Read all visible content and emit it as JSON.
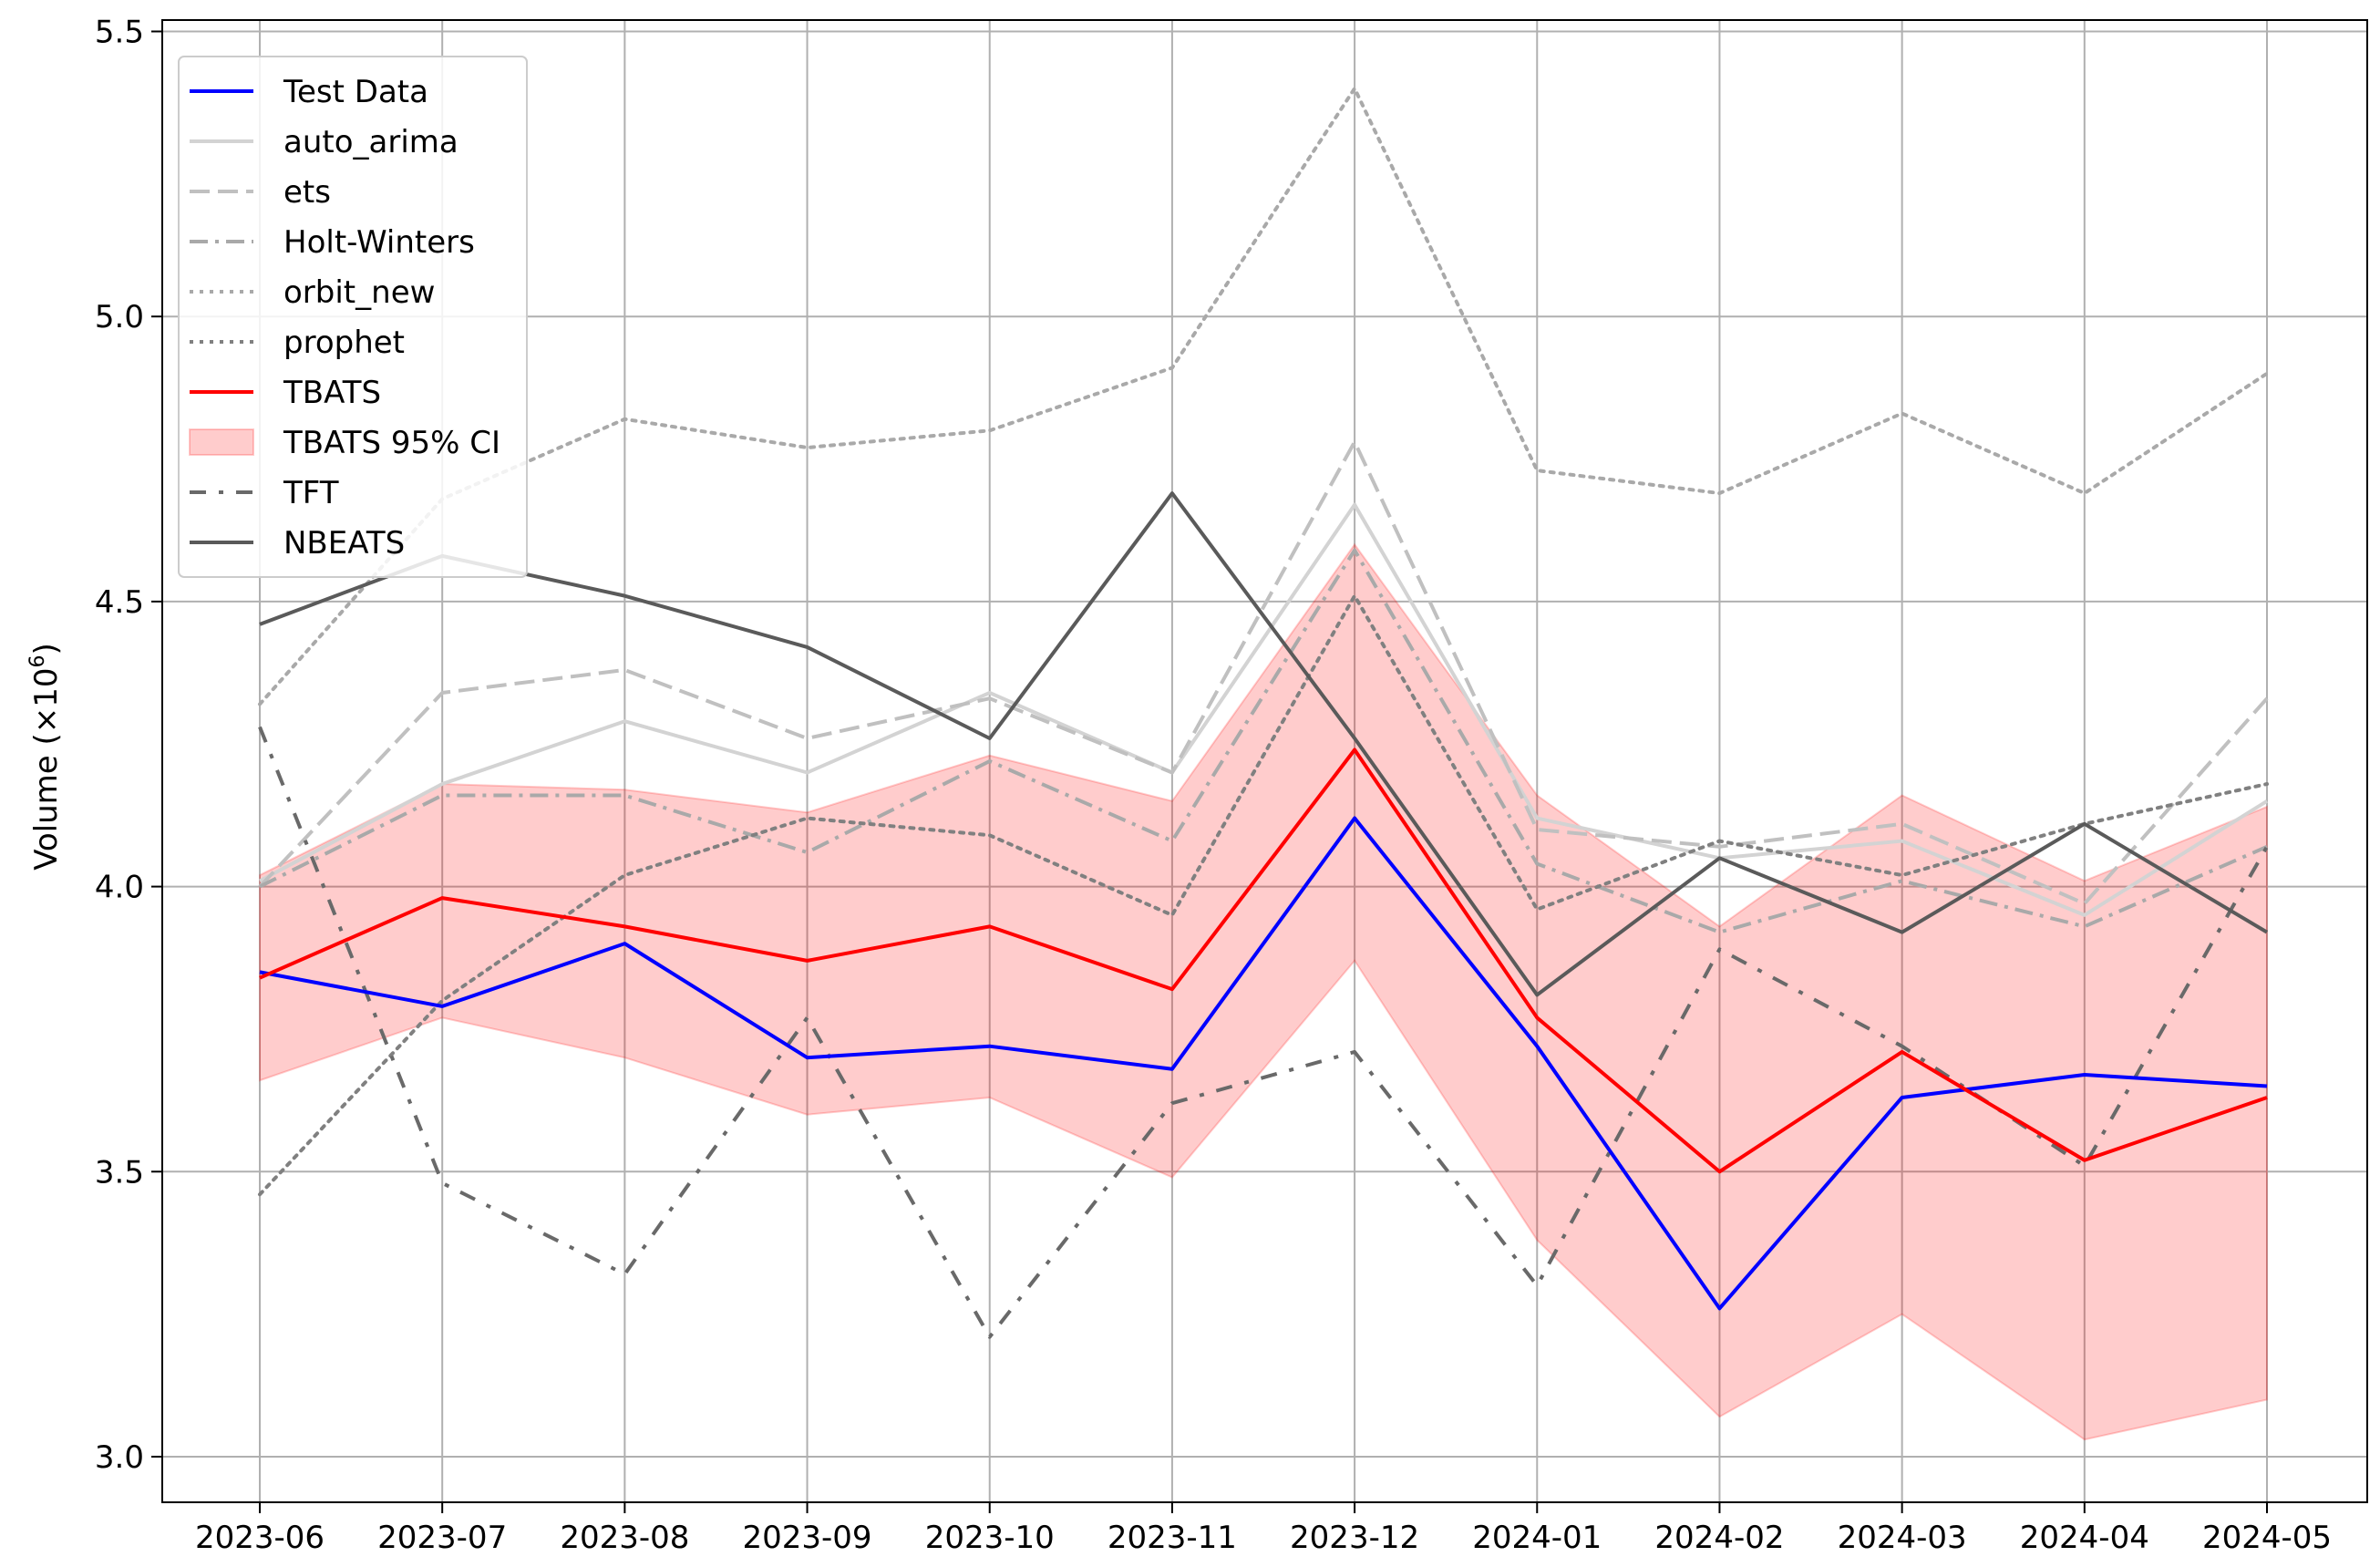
{
  "chart_data": {
    "type": "line",
    "title": "",
    "xlabel": "",
    "ylabel": "Volume (×10⁶)",
    "ylabel_parts": {
      "prefix": "Volume (×10",
      "exponent": "6",
      "suffix": ")"
    },
    "ylim": [
      2.92,
      5.52
    ],
    "yticks": [
      3.0,
      3.5,
      4.0,
      4.5,
      5.0,
      5.5
    ],
    "ytick_labels": [
      "3.0",
      "3.5",
      "4.0",
      "4.5",
      "5.0",
      "5.5"
    ],
    "grid": true,
    "legend_position": "top-left",
    "categories": [
      "2023-06",
      "2023-07",
      "2023-08",
      "2023-09",
      "2023-10",
      "2023-11",
      "2023-12",
      "2024-01",
      "2024-02",
      "2024-03",
      "2024-04",
      "2024-05"
    ],
    "series": [
      {
        "name": "Test Data",
        "color": "#0000ff",
        "dash": "solid",
        "values": [
          3.85,
          3.79,
          3.9,
          3.7,
          3.72,
          3.68,
          4.12,
          3.72,
          3.26,
          3.63,
          3.67,
          3.65
        ]
      },
      {
        "name": "auto_arima",
        "color": "#d3d3d3",
        "dash": "solid",
        "values": [
          4.01,
          4.18,
          4.29,
          4.2,
          4.34,
          4.2,
          4.67,
          4.12,
          4.05,
          4.08,
          3.95,
          4.15
        ]
      },
      {
        "name": "ets",
        "color": "#c0c0c0",
        "dash": "dashed",
        "values": [
          4.0,
          4.34,
          4.38,
          4.26,
          4.33,
          4.2,
          4.78,
          4.1,
          4.07,
          4.11,
          3.97,
          4.33
        ]
      },
      {
        "name": "Holt-Winters",
        "color": "#a9a9a9",
        "dash": "dashdot",
        "values": [
          4.0,
          4.16,
          4.16,
          4.06,
          4.22,
          4.08,
          4.59,
          4.04,
          3.92,
          4.01,
          3.93,
          4.07
        ]
      },
      {
        "name": "orbit_new",
        "color": "#a9a9a9",
        "dash": "dotted",
        "values": [
          4.32,
          4.68,
          4.82,
          4.77,
          4.8,
          4.91,
          5.4,
          4.73,
          4.69,
          4.83,
          4.69,
          4.9
        ]
      },
      {
        "name": "prophet",
        "color": "#808080",
        "dash": "dotted",
        "values": [
          3.46,
          3.8,
          4.02,
          4.12,
          4.09,
          3.95,
          4.51,
          3.96,
          4.08,
          4.02,
          4.11,
          4.18
        ]
      },
      {
        "name": "TBATS",
        "color": "#ff0000",
        "dash": "solid",
        "values": [
          3.84,
          3.98,
          3.93,
          3.87,
          3.93,
          3.82,
          4.24,
          3.77,
          3.5,
          3.71,
          3.52,
          3.63
        ]
      },
      {
        "name": "TFT",
        "color": "#696969",
        "dash": "dashdot-long",
        "values": [
          4.28,
          3.48,
          3.32,
          3.77,
          3.21,
          3.62,
          3.71,
          3.3,
          3.89,
          3.72,
          3.51,
          4.07
        ]
      },
      {
        "name": "NBEATS",
        "color": "#5a5a5a",
        "dash": "solid",
        "values": [
          4.46,
          4.58,
          4.51,
          4.42,
          4.26,
          4.69,
          4.26,
          3.81,
          4.05,
          3.92,
          4.11,
          3.92
        ]
      }
    ],
    "interval": {
      "name": "TBATS 95% CI",
      "color": "#ff0000",
      "opacity": 0.2,
      "lower": [
        3.66,
        3.77,
        3.7,
        3.6,
        3.63,
        3.49,
        3.87,
        3.38,
        3.07,
        3.25,
        3.03,
        3.1
      ],
      "upper": [
        4.02,
        4.18,
        4.17,
        4.13,
        4.23,
        4.15,
        4.6,
        4.16,
        3.93,
        4.16,
        4.01,
        4.14
      ]
    },
    "legend_items": [
      {
        "label": "Test Data",
        "kind": "line",
        "color": "#0000ff",
        "dash": "solid"
      },
      {
        "label": "auto_arima",
        "kind": "line",
        "color": "#d3d3d3",
        "dash": "solid"
      },
      {
        "label": "ets",
        "kind": "line",
        "color": "#c0c0c0",
        "dash": "dashed"
      },
      {
        "label": "Holt-Winters",
        "kind": "line",
        "color": "#a9a9a9",
        "dash": "dashdot"
      },
      {
        "label": "orbit_new",
        "kind": "line",
        "color": "#a9a9a9",
        "dash": "dotted"
      },
      {
        "label": "prophet",
        "kind": "line",
        "color": "#808080",
        "dash": "dotted"
      },
      {
        "label": "TBATS",
        "kind": "line",
        "color": "#ff0000",
        "dash": "solid"
      },
      {
        "label": "TBATS 95% CI",
        "kind": "patch",
        "color": "#ff0000",
        "dash": "solid"
      },
      {
        "label": "TFT",
        "kind": "line",
        "color": "#696969",
        "dash": "dashdot-long"
      },
      {
        "label": "NBEATS",
        "kind": "line",
        "color": "#5a5a5a",
        "dash": "solid"
      }
    ]
  }
}
